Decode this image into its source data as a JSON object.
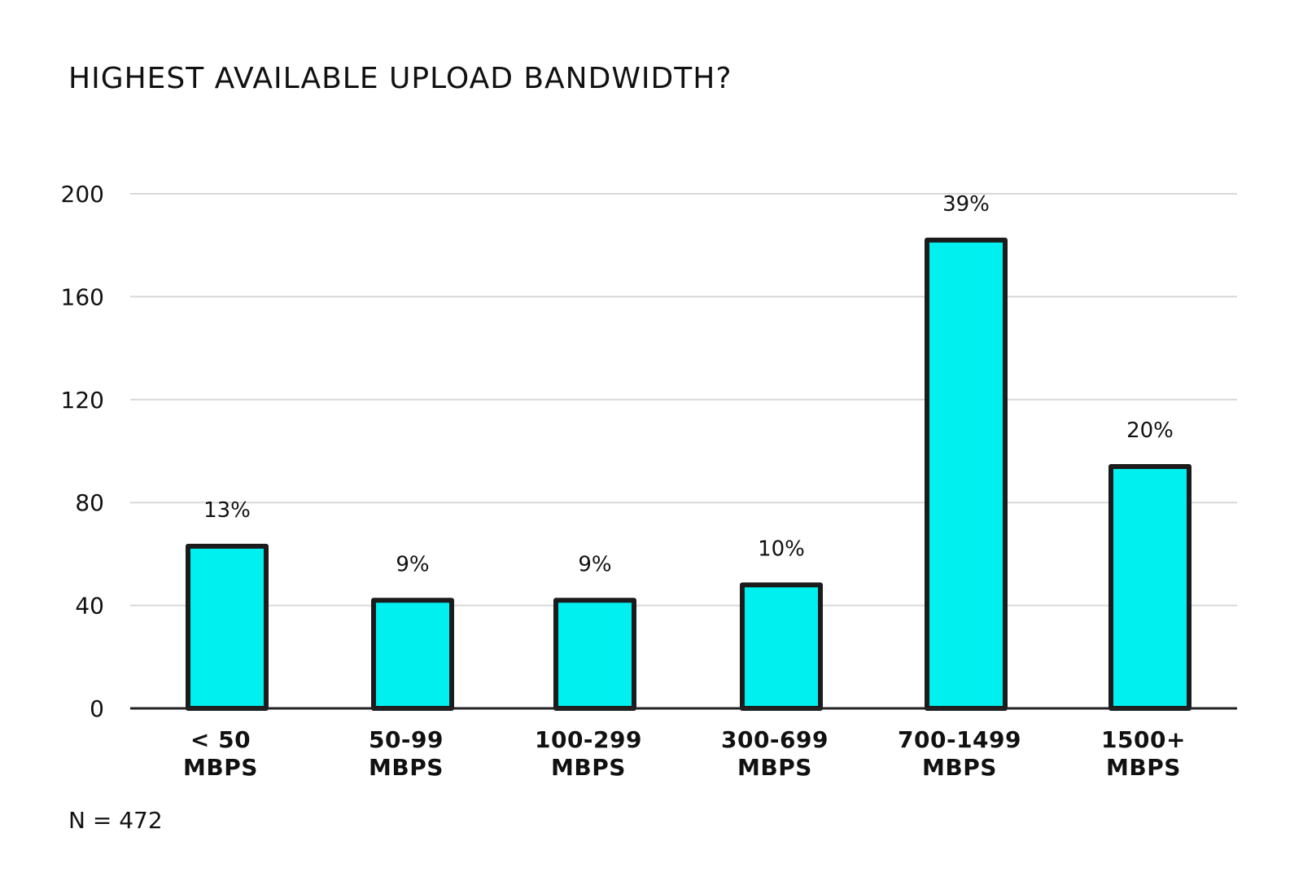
{
  "chart_data": {
    "type": "bar",
    "title": "HIGHEST AVAILABLE UPLOAD BANDWIDTH?",
    "categories": [
      [
        "< 50",
        "MBPS"
      ],
      [
        "50-99",
        "MBPS"
      ],
      [
        "100-299",
        "MBPS"
      ],
      [
        "300-699",
        "MBPS"
      ],
      [
        "700-1499",
        "MBPS"
      ],
      [
        "1500+",
        "MBPS"
      ]
    ],
    "values": [
      63,
      42,
      42,
      48,
      182,
      94
    ],
    "data_labels": [
      "13%",
      "9%",
      "9%",
      "10%",
      "39%",
      "20%"
    ],
    "ylim": [
      0,
      200
    ],
    "yticks": [
      0,
      40,
      80,
      120,
      160,
      200
    ],
    "ytick_labels": [
      "0",
      "40",
      "80",
      "120",
      "160",
      "200"
    ],
    "grid": true,
    "bar_color": "#00f0f0",
    "outline_color": "#1b1b1b",
    "hatched": true
  },
  "footnote": "N = 472"
}
